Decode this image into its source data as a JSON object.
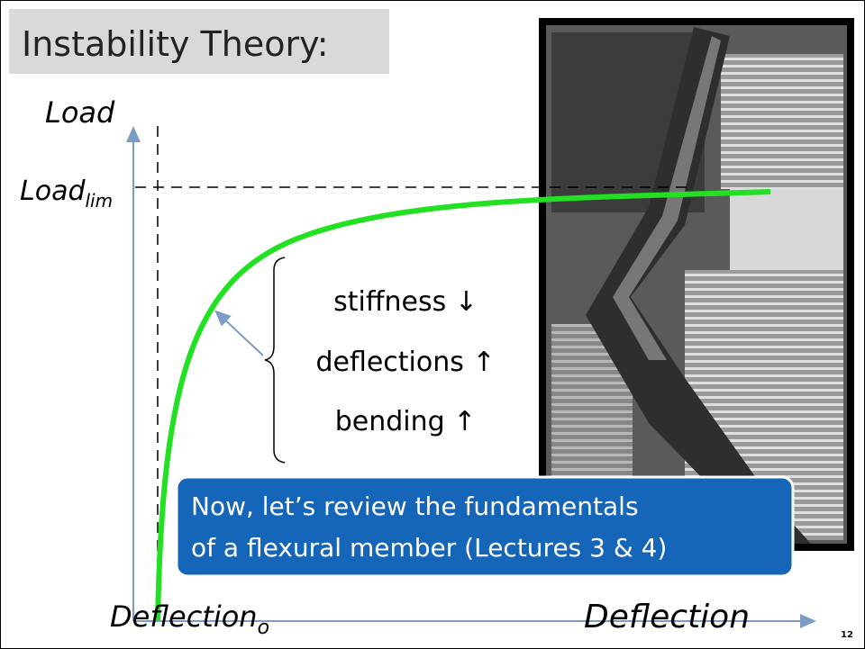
{
  "title": "Instability Theory:",
  "y_axis_label": "Load",
  "limit_label": {
    "base": "Load",
    "sub": "lim"
  },
  "x_origin_label": {
    "base": "Deflection",
    "sub": "o"
  },
  "x_axis_label": "Deflection",
  "effects": [
    "stiffness ↓",
    "deflections ↑",
    "bending ↑"
  ],
  "callout": [
    "Now, let’s review the fundamentals",
    "of a flexural member (Lectures 3 & 4)"
  ],
  "page_number": "12"
}
